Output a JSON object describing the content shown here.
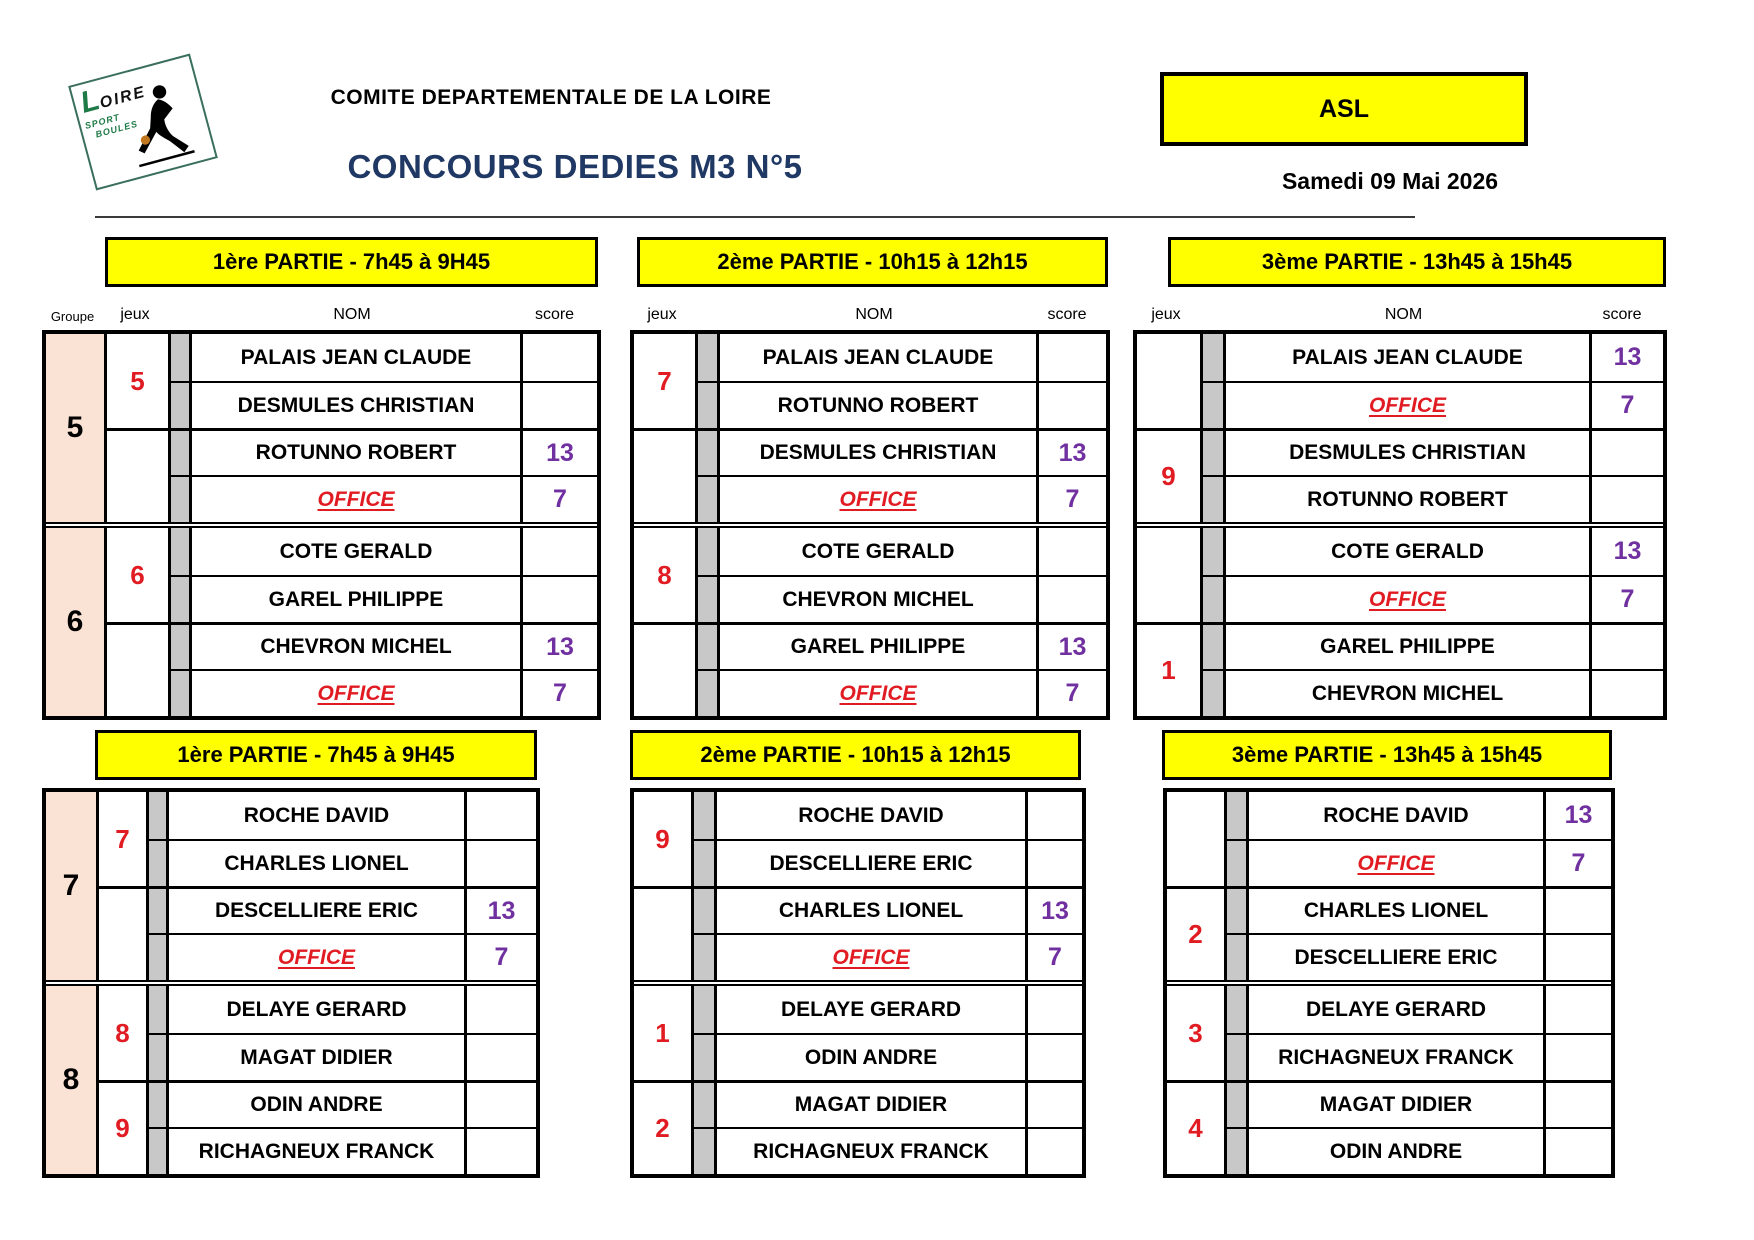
{
  "header": {
    "committee": "COMITE DEPARTEMENTALE DE LA LOIRE",
    "title": "CONCOURS DEDIES M3 N°5",
    "club": "ASL",
    "date": "Samedi 09 Mai 2026"
  },
  "logo": {
    "initial": "L",
    "rest": "OIRE",
    "sport": "SPORT",
    "boules": "BOULES"
  },
  "labels": {
    "groupe": "Groupe",
    "jeux": "jeux",
    "nom": "NOM",
    "score": "score"
  },
  "colors": {
    "yellow": "#FFFF00",
    "peach": "#FAE3D5",
    "gray": "#C8C8C8",
    "red": "#E11B22",
    "purple": "#7030A0",
    "navy": "#1F3864",
    "green": "#1E7A46",
    "ball": "#C2781F"
  },
  "tables": [
    {
      "period": "1ère PARTIE - 7h45 à 9H45",
      "groups": [
        {
          "groupe": "5",
          "pairs": [
            {
              "jeux": "5",
              "players": [
                {
                  "name": "PALAIS JEAN CLAUDE",
                  "score": ""
                },
                {
                  "name": "DESMULES CHRISTIAN",
                  "score": ""
                }
              ]
            },
            {
              "jeux": "",
              "players": [
                {
                  "name": "ROTUNNO ROBERT",
                  "score": "13"
                },
                {
                  "name": "OFFICE",
                  "score": "7",
                  "office": true
                }
              ]
            }
          ]
        },
        {
          "groupe": "6",
          "pairs": [
            {
              "jeux": "6",
              "players": [
                {
                  "name": "COTE GERALD",
                  "score": ""
                },
                {
                  "name": "GAREL PHILIPPE",
                  "score": ""
                }
              ]
            },
            {
              "jeux": "",
              "players": [
                {
                  "name": "CHEVRON MICHEL",
                  "score": "13"
                },
                {
                  "name": "OFFICE",
                  "score": "7",
                  "office": true
                }
              ]
            }
          ]
        }
      ]
    },
    {
      "period": "2ème PARTIE - 10h15 à 12h15",
      "groups": [
        {
          "pairs": [
            {
              "jeux": "7",
              "players": [
                {
                  "name": "PALAIS JEAN CLAUDE",
                  "score": ""
                },
                {
                  "name": "ROTUNNO ROBERT",
                  "score": ""
                }
              ]
            },
            {
              "jeux": "",
              "players": [
                {
                  "name": "DESMULES CHRISTIAN",
                  "score": "13"
                },
                {
                  "name": "OFFICE",
                  "score": "7",
                  "office": true
                }
              ]
            }
          ]
        },
        {
          "pairs": [
            {
              "jeux": "8",
              "players": [
                {
                  "name": "COTE GERALD",
                  "score": ""
                },
                {
                  "name": "CHEVRON MICHEL",
                  "score": ""
                }
              ]
            },
            {
              "jeux": "",
              "players": [
                {
                  "name": "GAREL PHILIPPE",
                  "score": "13"
                },
                {
                  "name": "OFFICE",
                  "score": "7",
                  "office": true
                }
              ]
            }
          ]
        }
      ]
    },
    {
      "period": "3ème PARTIE - 13h45 à 15h45",
      "groups": [
        {
          "pairs": [
            {
              "jeux": "",
              "players": [
                {
                  "name": "PALAIS JEAN CLAUDE",
                  "score": "13"
                },
                {
                  "name": "OFFICE",
                  "score": "7",
                  "office": true
                }
              ]
            },
            {
              "jeux": "9",
              "players": [
                {
                  "name": "DESMULES CHRISTIAN",
                  "score": ""
                },
                {
                  "name": "ROTUNNO ROBERT",
                  "score": ""
                }
              ]
            }
          ]
        },
        {
          "pairs": [
            {
              "jeux": "",
              "players": [
                {
                  "name": "COTE GERALD",
                  "score": "13"
                },
                {
                  "name": "OFFICE",
                  "score": "7",
                  "office": true
                }
              ]
            },
            {
              "jeux": "1",
              "players": [
                {
                  "name": "GAREL PHILIPPE",
                  "score": ""
                },
                {
                  "name": "CHEVRON MICHEL",
                  "score": ""
                }
              ]
            }
          ]
        }
      ]
    },
    {
      "period": "1ère PARTIE - 7h45 à 9H45",
      "groups": [
        {
          "groupe": "7",
          "pairs": [
            {
              "jeux": "7",
              "players": [
                {
                  "name": "ROCHE DAVID",
                  "score": ""
                },
                {
                  "name": "CHARLES LIONEL",
                  "score": ""
                }
              ]
            },
            {
              "jeux": "",
              "players": [
                {
                  "name": "DESCELLIERE ERIC",
                  "score": "13"
                },
                {
                  "name": "OFFICE",
                  "score": "7",
                  "office": true
                }
              ]
            }
          ]
        },
        {
          "groupe": "8",
          "pairs": [
            {
              "jeux": "8",
              "players": [
                {
                  "name": "DELAYE GERARD",
                  "score": ""
                },
                {
                  "name": "MAGAT DIDIER",
                  "score": ""
                }
              ]
            },
            {
              "jeux": "9",
              "players": [
                {
                  "name": "ODIN ANDRE",
                  "score": ""
                },
                {
                  "name": "RICHAGNEUX FRANCK",
                  "score": ""
                }
              ]
            }
          ]
        }
      ]
    },
    {
      "period": "2ème PARTIE - 10h15 à 12h15",
      "groups": [
        {
          "pairs": [
            {
              "jeux": "9",
              "players": [
                {
                  "name": "ROCHE DAVID",
                  "score": ""
                },
                {
                  "name": "DESCELLIERE ERIC",
                  "score": ""
                }
              ]
            },
            {
              "jeux": "",
              "players": [
                {
                  "name": "CHARLES LIONEL",
                  "score": "13"
                },
                {
                  "name": "OFFICE",
                  "score": "7",
                  "office": true
                }
              ]
            }
          ]
        },
        {
          "pairs": [
            {
              "jeux": "1",
              "players": [
                {
                  "name": "DELAYE GERARD",
                  "score": ""
                },
                {
                  "name": "ODIN ANDRE",
                  "score": ""
                }
              ]
            },
            {
              "jeux": "2",
              "players": [
                {
                  "name": "MAGAT DIDIER",
                  "score": ""
                },
                {
                  "name": "RICHAGNEUX FRANCK",
                  "score": ""
                }
              ]
            }
          ]
        }
      ]
    },
    {
      "period": "3ème PARTIE - 13h45 à 15h45",
      "groups": [
        {
          "pairs": [
            {
              "jeux": "",
              "players": [
                {
                  "name": "ROCHE DAVID",
                  "score": "13"
                },
                {
                  "name": "OFFICE",
                  "score": "7",
                  "office": true
                }
              ]
            },
            {
              "jeux": "2",
              "players": [
                {
                  "name": "CHARLES LIONEL",
                  "score": ""
                },
                {
                  "name": "DESCELLIERE ERIC",
                  "score": ""
                }
              ]
            }
          ]
        },
        {
          "pairs": [
            {
              "jeux": "3",
              "players": [
                {
                  "name": "DELAYE GERARD",
                  "score": ""
                },
                {
                  "name": "RICHAGNEUX FRANCK",
                  "score": ""
                }
              ]
            },
            {
              "jeux": "4",
              "players": [
                {
                  "name": "MAGAT DIDIER",
                  "score": ""
                },
                {
                  "name": "ODIN ANDRE",
                  "score": ""
                }
              ]
            }
          ]
        }
      ]
    }
  ]
}
